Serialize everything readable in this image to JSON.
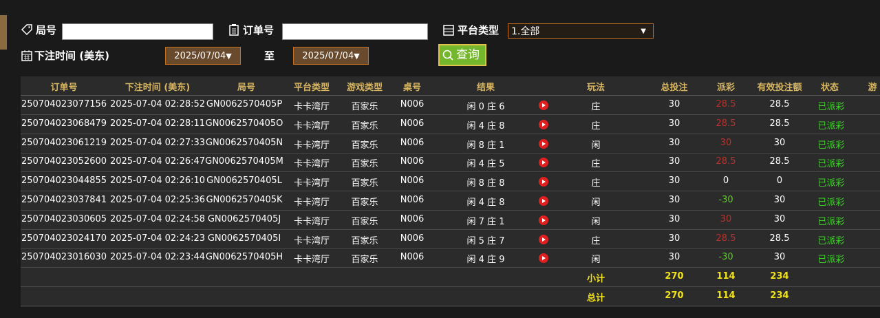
{
  "filters": {
    "round_label": "局号",
    "order_label": "订单号",
    "platform_label": "平台类型",
    "platform_value": "1.全部",
    "time_label": "下注时间 (美东)",
    "date_from": "2025/07/04",
    "to_label": "至",
    "date_to": "2025/07/04",
    "query_button": "查询"
  },
  "table": {
    "columns": [
      "订单号",
      "下注时间 (美东)",
      "局号",
      "平台类型",
      "游戏类型",
      "桌号",
      "结果",
      "玩法",
      "总投注",
      "派彩",
      "有效投注额",
      "状态",
      "游"
    ],
    "rows": [
      [
        "250704023077156",
        "2025-07-04 02:28:52",
        "GN0062570405P",
        "卡卡湾厅",
        "百家乐",
        "N006",
        "闲 0 庄 6",
        "庄",
        30,
        28.5,
        28.5,
        "已派彩"
      ],
      [
        "250704023068479",
        "2025-07-04 02:28:11",
        "GN0062570405O",
        "卡卡湾厅",
        "百家乐",
        "N006",
        "闲 4 庄 8",
        "庄",
        30,
        28.5,
        28.5,
        "已派彩"
      ],
      [
        "250704023061219",
        "2025-07-04 02:27:33",
        "GN0062570405N",
        "卡卡湾厅",
        "百家乐",
        "N006",
        "闲 8 庄 1",
        "闲",
        30,
        30,
        30,
        "已派彩"
      ],
      [
        "250704023052600",
        "2025-07-04 02:26:47",
        "GN0062570405M",
        "卡卡湾厅",
        "百家乐",
        "N006",
        "闲 4 庄 5",
        "庄",
        30,
        28.5,
        28.5,
        "已派彩"
      ],
      [
        "250704023044855",
        "2025-07-04 02:26:10",
        "GN0062570405L",
        "卡卡湾厅",
        "百家乐",
        "N006",
        "闲 8 庄 8",
        "庄",
        30,
        0,
        0,
        "已派彩"
      ],
      [
        "250704023037841",
        "2025-07-04 02:25:36",
        "GN0062570405K",
        "卡卡湾厅",
        "百家乐",
        "N006",
        "闲 4 庄 8",
        "闲",
        30,
        -30,
        30,
        "已派彩"
      ],
      [
        "250704023030605",
        "2025-07-04 02:24:58",
        "GN0062570405J",
        "卡卡湾厅",
        "百家乐",
        "N006",
        "闲 7 庄 1",
        "闲",
        30,
        30,
        30,
        "已派彩"
      ],
      [
        "250704023024170",
        "2025-07-04 02:24:23",
        "GN0062570405I",
        "卡卡湾厅",
        "百家乐",
        "N006",
        "闲 5 庄 7",
        "庄",
        30,
        28.5,
        28.5,
        "已派彩"
      ],
      [
        "250704023016030",
        "2025-07-04 02:23:44",
        "GN0062570405H",
        "卡卡湾厅",
        "百家乐",
        "N006",
        "闲 4 庄 9",
        "闲",
        30,
        -30,
        30,
        "已派彩"
      ]
    ],
    "subtotal": {
      "label": "小计",
      "values": [
        270,
        114,
        234
      ]
    },
    "total": {
      "label": "总计",
      "values": [
        270,
        114,
        234
      ]
    }
  }
}
